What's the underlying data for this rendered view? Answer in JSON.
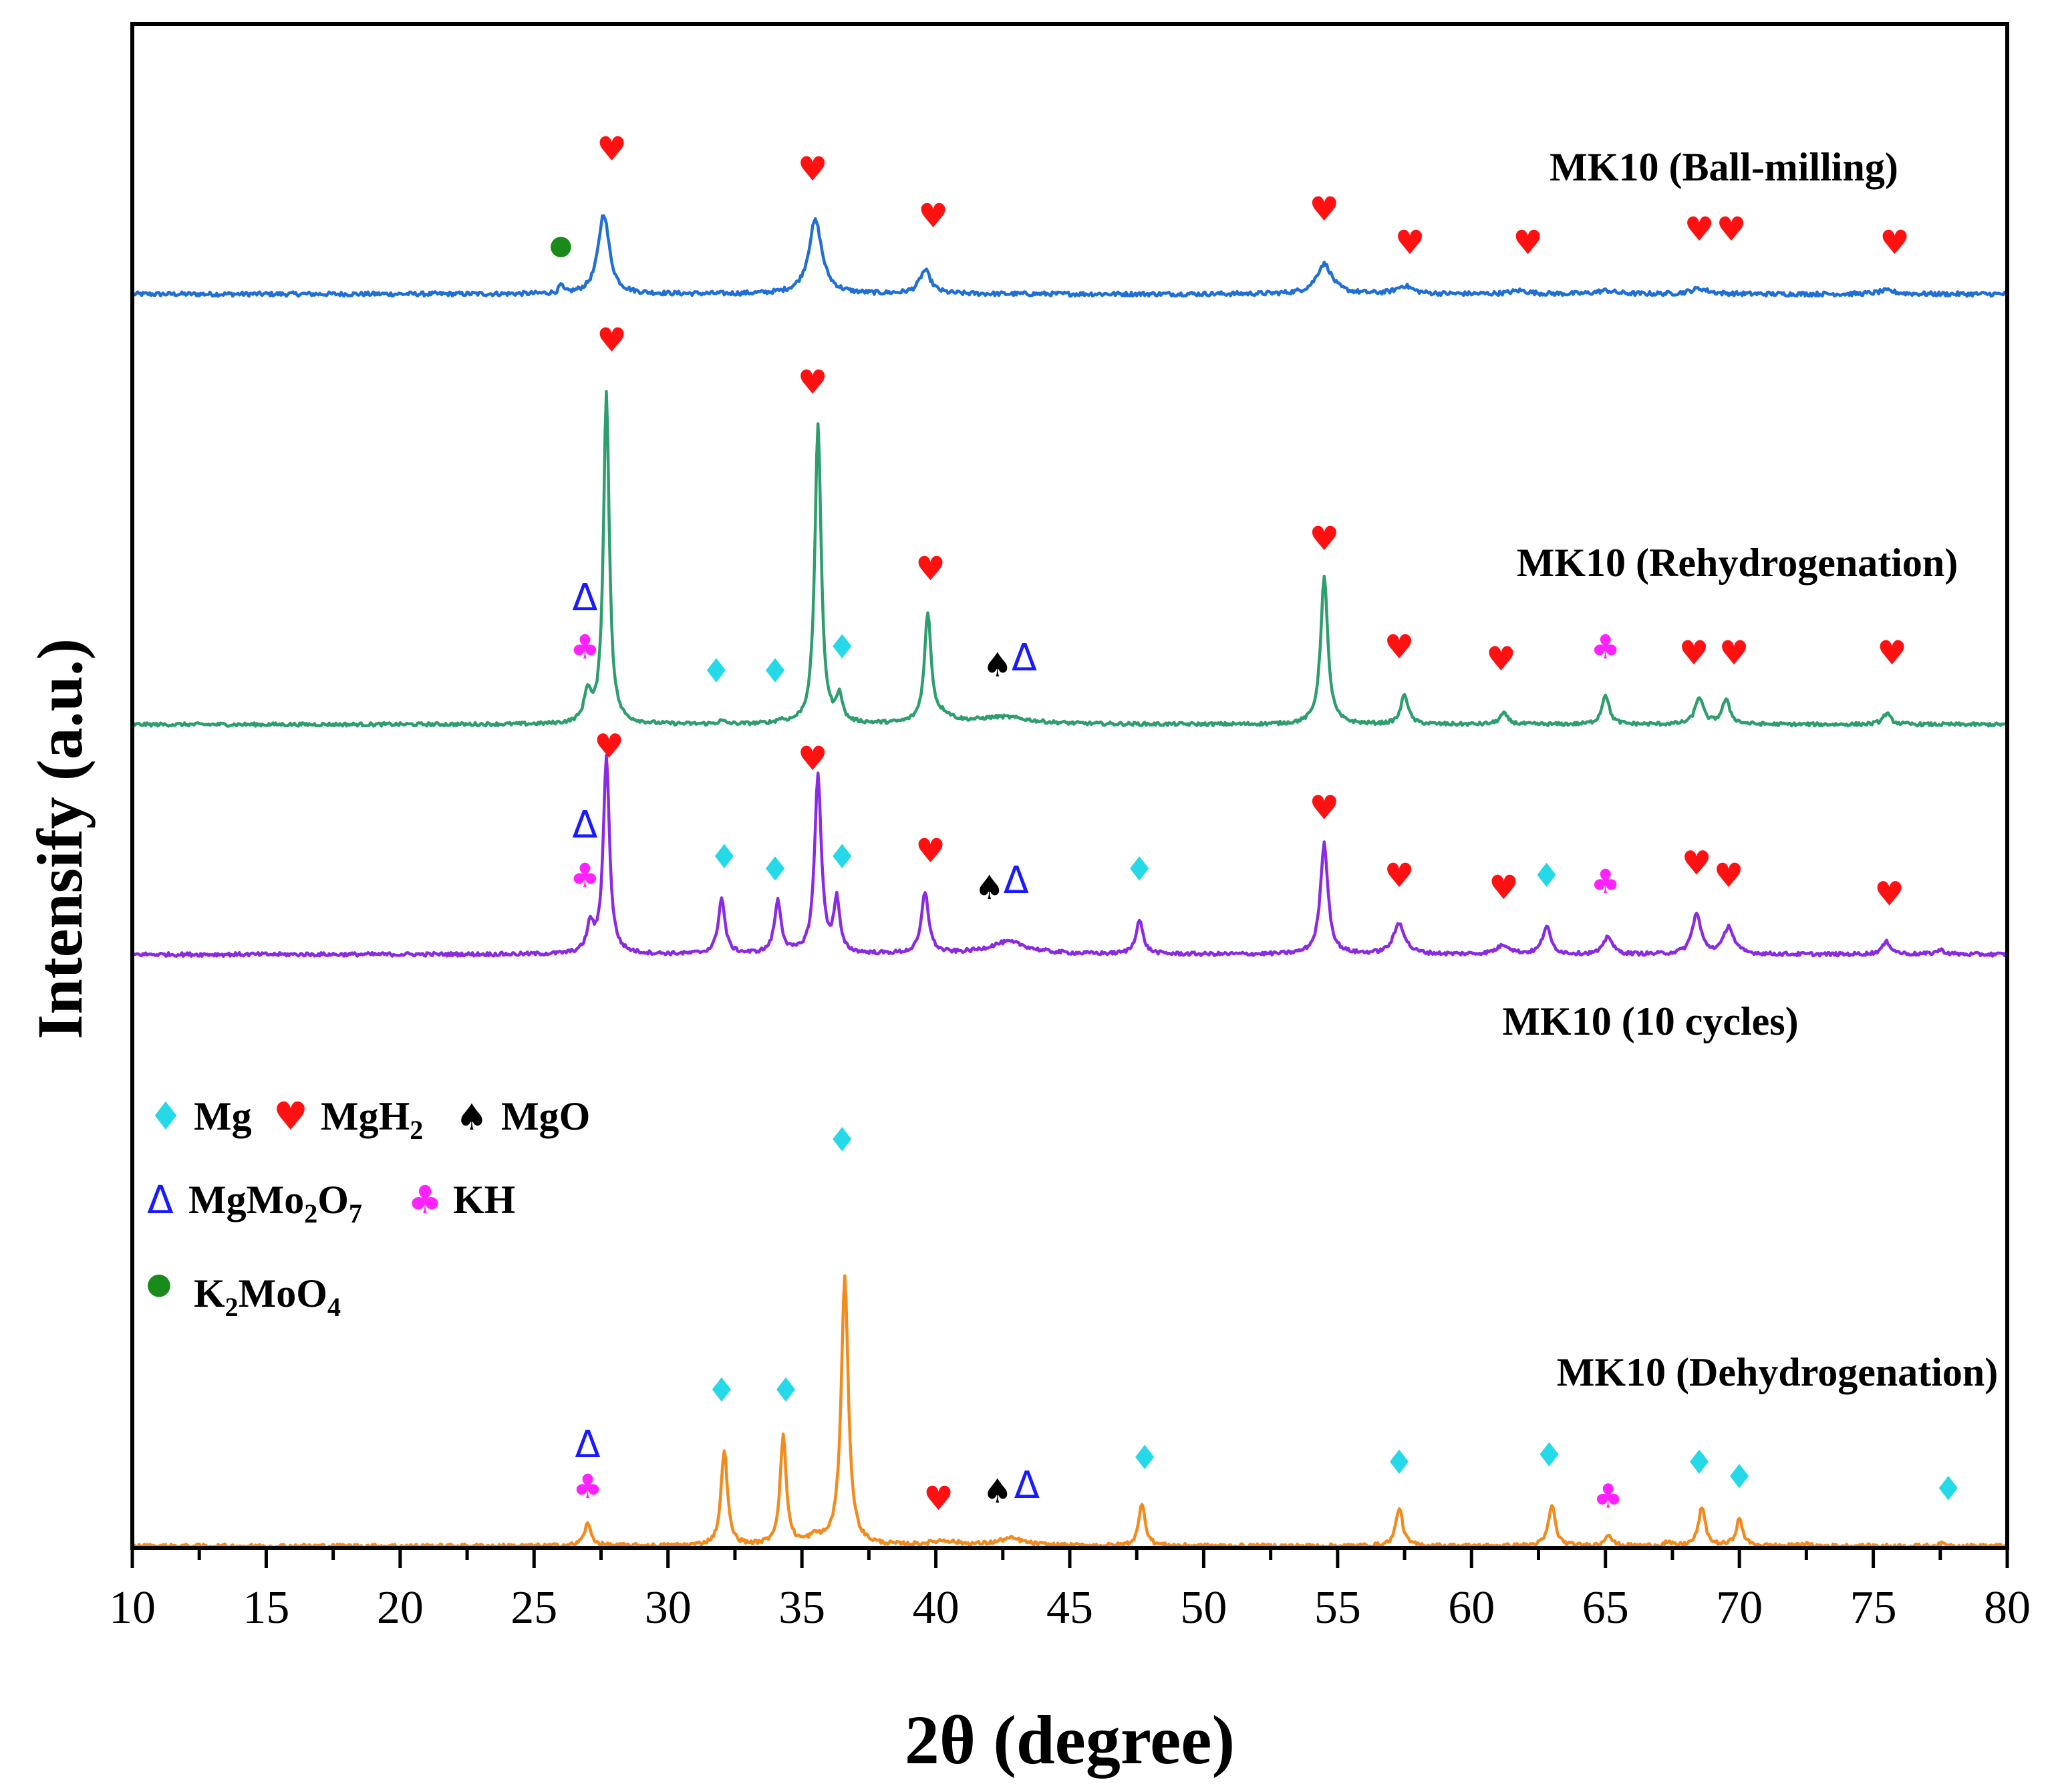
{
  "chart_data": {
    "type": "line",
    "title": "",
    "xlabel": "2θ (degree)",
    "ylabel": "Intensify (a.u.)",
    "xlim": [
      10,
      80
    ],
    "x_ticks": [
      10,
      15,
      20,
      25,
      30,
      35,
      40,
      45,
      50,
      55,
      60,
      65,
      70,
      75,
      80
    ],
    "y_ticks": [],
    "grid": false,
    "legend_position": "bottom-left",
    "colors": {
      "ball": "#1f6fd6",
      "rehyd": "#2e9e6e",
      "cycles": "#8a2be2",
      "dehyd": "#f28a1c",
      "Mg": "#26d9e8",
      "MgH2": "#ff1111",
      "MgO": "#000000",
      "MgMo2O7": "#1a1aff",
      "KH": "#ff22ff",
      "K2MoO4": "#1a8a1a"
    },
    "legend": [
      {
        "phase": "Mg",
        "symbol": "♦",
        "label": "Mg"
      },
      {
        "phase": "MgH2",
        "symbol": "♥",
        "label": "MgH",
        "sub": "2"
      },
      {
        "phase": "MgO",
        "symbol": "♠",
        "label": "MgO"
      },
      {
        "phase": "MgMo2O7",
        "symbol": "Δ",
        "label": "MgMo",
        "sub1": "2",
        "mid": "O",
        "sub2": "7"
      },
      {
        "phase": "KH",
        "symbol": "♣",
        "label": "KH"
      },
      {
        "phase": "K2MoO4",
        "symbol": "●",
        "label": "K",
        "sub1": "2",
        "mid": "MoO",
        "sub2": "4"
      }
    ],
    "series": [
      {
        "name": "MK10 (Ball-milling)",
        "key": "ball",
        "baseline": 0.1,
        "scale": 0.055,
        "peaks": [
          {
            "x": 26.0,
            "h": 0.12,
            "w": 0.08
          },
          {
            "x": 27.6,
            "h": 1.2,
            "w": 0.25
          },
          {
            "x": 35.5,
            "h": 1.1,
            "w": 0.3
          },
          {
            "x": 39.6,
            "h": 0.35,
            "w": 0.25
          },
          {
            "x": 54.5,
            "h": 0.45,
            "w": 0.35
          },
          {
            "x": 57.5,
            "h": 0.12,
            "w": 0.35
          },
          {
            "x": 61.8,
            "h": 0.05,
            "w": 0.4
          },
          {
            "x": 65.0,
            "h": 0.05,
            "w": 0.4
          },
          {
            "x": 68.5,
            "h": 0.08,
            "w": 0.4
          },
          {
            "x": 75.5,
            "h": 0.05,
            "w": 0.4
          }
        ],
        "markers": [
          {
            "x": 26.0,
            "phase": "K2MoO4",
            "symbol": "●",
            "y": 0.6
          },
          {
            "x": 27.9,
            "phase": "MgH2",
            "symbol": "♥",
            "y": 2.0
          },
          {
            "x": 35.4,
            "phase": "MgH2",
            "symbol": "♥",
            "y": 1.7
          },
          {
            "x": 39.9,
            "phase": "MgH2",
            "symbol": "♥",
            "y": 1.0
          },
          {
            "x": 54.5,
            "phase": "MgH2",
            "symbol": "♥",
            "y": 1.1
          },
          {
            "x": 57.7,
            "phase": "MgH2",
            "symbol": "♥",
            "y": 0.6
          },
          {
            "x": 62.1,
            "phase": "MgH2",
            "symbol": "♥",
            "y": 0.6
          },
          {
            "x": 68.5,
            "phase": "MgH2",
            "symbol": "♥",
            "y": 0.8
          },
          {
            "x": 69.7,
            "phase": "MgH2",
            "symbol": "♥",
            "y": 0.8
          },
          {
            "x": 75.8,
            "phase": "MgH2",
            "symbol": "♥",
            "y": 0.6
          }
        ]
      },
      {
        "name": "MK10 (Rehydrogenation)",
        "key": "rehyd",
        "baseline": 0.1,
        "scale": 0.048,
        "peaks": [
          {
            "x": 27.0,
            "h": 0.5,
            "w": 0.15
          },
          {
            "x": 27.7,
            "h": 5.5,
            "w": 0.13
          },
          {
            "x": 32.0,
            "h": 0.05,
            "w": 0.15
          },
          {
            "x": 34.2,
            "h": 0.05,
            "w": 0.15
          },
          {
            "x": 35.6,
            "h": 5.0,
            "w": 0.14
          },
          {
            "x": 36.4,
            "h": 0.45,
            "w": 0.12
          },
          {
            "x": 39.7,
            "h": 1.8,
            "w": 0.15
          },
          {
            "x": 40.3,
            "h": 0.12,
            "w": 0.4
          },
          {
            "x": 42.5,
            "h": 0.12,
            "w": 1.2
          },
          {
            "x": 54.5,
            "h": 2.45,
            "w": 0.16
          },
          {
            "x": 57.5,
            "h": 0.5,
            "w": 0.16
          },
          {
            "x": 61.2,
            "h": 0.18,
            "w": 0.18
          },
          {
            "x": 65.0,
            "h": 0.5,
            "w": 0.16
          },
          {
            "x": 68.5,
            "h": 0.45,
            "w": 0.18
          },
          {
            "x": 69.5,
            "h": 0.4,
            "w": 0.18
          },
          {
            "x": 75.5,
            "h": 0.18,
            "w": 0.18
          }
        ],
        "markers": [
          {
            "x": 26.9,
            "phase": "KH",
            "symbol": "♣",
            "y": 1.1
          },
          {
            "x": 26.9,
            "phase": "MgMo2O7",
            "symbol": "Δ",
            "y": 1.9
          },
          {
            "x": 27.9,
            "phase": "MgH2",
            "symbol": "♥",
            "y": 6.2
          },
          {
            "x": 31.8,
            "phase": "Mg",
            "symbol": "♦",
            "y": 0.7
          },
          {
            "x": 34.0,
            "phase": "Mg",
            "symbol": "♦",
            "y": 0.7
          },
          {
            "x": 36.5,
            "phase": "Mg",
            "symbol": "♦",
            "y": 1.1
          },
          {
            "x": 35.4,
            "phase": "MgH2",
            "symbol": "♥",
            "y": 5.5
          },
          {
            "x": 39.8,
            "phase": "MgH2",
            "symbol": "♥",
            "y": 2.4
          },
          {
            "x": 42.3,
            "phase": "MgO",
            "symbol": "♠",
            "y": 0.8
          },
          {
            "x": 43.3,
            "phase": "MgMo2O7",
            "symbol": "Δ",
            "y": 0.9
          },
          {
            "x": 54.5,
            "phase": "MgH2",
            "symbol": "♥",
            "y": 2.9
          },
          {
            "x": 57.3,
            "phase": "MgH2",
            "symbol": "♥",
            "y": 1.1
          },
          {
            "x": 61.1,
            "phase": "MgH2",
            "symbol": "♥",
            "y": 0.9
          },
          {
            "x": 65.0,
            "phase": "KH",
            "symbol": "♣",
            "y": 1.1
          },
          {
            "x": 68.3,
            "phase": "MgH2",
            "symbol": "♥",
            "y": 1.0
          },
          {
            "x": 69.8,
            "phase": "MgH2",
            "symbol": "♥",
            "y": 1.0
          },
          {
            "x": 75.7,
            "phase": "MgH2",
            "symbol": "♥",
            "y": 1.0
          }
        ]
      },
      {
        "name": "MK10 (10 cycles)",
        "key": "cycles",
        "baseline": 0.1,
        "scale": 0.05,
        "peaks": [
          {
            "x": 27.1,
            "h": 0.45,
            "w": 0.15
          },
          {
            "x": 27.7,
            "h": 3.2,
            "w": 0.14
          },
          {
            "x": 32.0,
            "h": 0.9,
            "w": 0.15
          },
          {
            "x": 34.1,
            "h": 0.85,
            "w": 0.15
          },
          {
            "x": 35.6,
            "h": 2.9,
            "w": 0.15
          },
          {
            "x": 36.3,
            "h": 0.85,
            "w": 0.13
          },
          {
            "x": 39.6,
            "h": 1.0,
            "w": 0.16
          },
          {
            "x": 42.7,
            "h": 0.2,
            "w": 0.9
          },
          {
            "x": 47.6,
            "h": 0.55,
            "w": 0.16
          },
          {
            "x": 54.5,
            "h": 1.8,
            "w": 0.17
          },
          {
            "x": 57.3,
            "h": 0.5,
            "w": 0.25
          },
          {
            "x": 61.2,
            "h": 0.15,
            "w": 0.3
          },
          {
            "x": 62.8,
            "h": 0.45,
            "w": 0.18
          },
          {
            "x": 65.1,
            "h": 0.3,
            "w": 0.18
          },
          {
            "x": 68.4,
            "h": 0.65,
            "w": 0.2
          },
          {
            "x": 69.6,
            "h": 0.45,
            "w": 0.22
          },
          {
            "x": 75.5,
            "h": 0.2,
            "w": 0.2
          },
          {
            "x": 77.5,
            "h": 0.07,
            "w": 0.2
          }
        ],
        "markers": [
          {
            "x": 26.9,
            "phase": "KH",
            "symbol": "♣",
            "y": 1.1
          },
          {
            "x": 26.9,
            "phase": "MgMo2O7",
            "symbol": "Δ",
            "y": 1.9
          },
          {
            "x": 27.8,
            "phase": "MgH2",
            "symbol": "♥",
            "y": 3.2
          },
          {
            "x": 32.1,
            "phase": "Mg",
            "symbol": "♦",
            "y": 1.4
          },
          {
            "x": 34.0,
            "phase": "Mg",
            "symbol": "♦",
            "y": 1.2
          },
          {
            "x": 36.5,
            "phase": "Mg",
            "symbol": "♦",
            "y": 1.4
          },
          {
            "x": 35.4,
            "phase": "MgH2",
            "symbol": "♥",
            "y": 3.0
          },
          {
            "x": 39.8,
            "phase": "MgH2",
            "symbol": "♥",
            "y": 1.5
          },
          {
            "x": 42.0,
            "phase": "MgO",
            "symbol": "♠",
            "y": 0.9
          },
          {
            "x": 43.0,
            "phase": "MgMo2O7",
            "symbol": "Δ",
            "y": 1.0
          },
          {
            "x": 47.6,
            "phase": "Mg",
            "symbol": "♦",
            "y": 1.2
          },
          {
            "x": 54.5,
            "phase": "MgH2",
            "symbol": "♥",
            "y": 2.2
          },
          {
            "x": 57.3,
            "phase": "MgH2",
            "symbol": "♥",
            "y": 1.1
          },
          {
            "x": 61.2,
            "phase": "MgH2",
            "symbol": "♥",
            "y": 0.9
          },
          {
            "x": 62.8,
            "phase": "Mg",
            "symbol": "♦",
            "y": 1.1
          },
          {
            "x": 65.0,
            "phase": "KH",
            "symbol": "♣",
            "y": 1.0
          },
          {
            "x": 68.4,
            "phase": "MgH2",
            "symbol": "♥",
            "y": 1.3
          },
          {
            "x": 69.6,
            "phase": "MgH2",
            "symbol": "♥",
            "y": 1.1
          },
          {
            "x": 75.6,
            "phase": "MgH2",
            "symbol": "♥",
            "y": 0.8
          }
        ]
      },
      {
        "name": "MK10 (Dehydrogenation)",
        "key": "dehyd",
        "baseline": 0.1,
        "scale": 0.07,
        "peaks": [
          {
            "x": 27.0,
            "h": 0.45,
            "w": 0.16
          },
          {
            "x": 32.1,
            "h": 2.0,
            "w": 0.14
          },
          {
            "x": 34.3,
            "h": 2.25,
            "w": 0.14
          },
          {
            "x": 35.5,
            "h": 0.15,
            "w": 0.3
          },
          {
            "x": 36.6,
            "h": 5.55,
            "w": 0.16
          },
          {
            "x": 40.3,
            "h": 0.1,
            "w": 0.6
          },
          {
            "x": 42.8,
            "h": 0.15,
            "w": 0.6
          },
          {
            "x": 47.7,
            "h": 0.9,
            "w": 0.14
          },
          {
            "x": 57.3,
            "h": 0.8,
            "w": 0.15
          },
          {
            "x": 63.0,
            "h": 0.85,
            "w": 0.15
          },
          {
            "x": 65.1,
            "h": 0.25,
            "w": 0.15
          },
          {
            "x": 67.3,
            "h": 0.07,
            "w": 0.15
          },
          {
            "x": 68.6,
            "h": 0.8,
            "w": 0.15
          },
          {
            "x": 70.0,
            "h": 0.55,
            "w": 0.15
          },
          {
            "x": 72.4,
            "h": 0.05,
            "w": 0.15
          },
          {
            "x": 77.6,
            "h": 0.05,
            "w": 0.15
          }
        ],
        "markers": [
          {
            "x": 27.0,
            "phase": "KH",
            "symbol": "♣",
            "y": 1.0
          },
          {
            "x": 27.0,
            "phase": "MgMo2O7",
            "symbol": "Δ",
            "y": 1.85
          },
          {
            "x": 32.0,
            "phase": "Mg",
            "symbol": "♦",
            "y": 3.0
          },
          {
            "x": 34.4,
            "phase": "Mg",
            "symbol": "♦",
            "y": 3.0
          },
          {
            "x": 36.5,
            "phase": "Mg",
            "symbol": "♦",
            "y": 8.2
          },
          {
            "x": 40.1,
            "phase": "MgH2",
            "symbol": "♥",
            "y": 0.75
          },
          {
            "x": 42.3,
            "phase": "MgO",
            "symbol": "♠",
            "y": 0.9
          },
          {
            "x": 43.4,
            "phase": "MgMo2O7",
            "symbol": "Δ",
            "y": 1.0
          },
          {
            "x": 47.8,
            "phase": "Mg",
            "symbol": "♦",
            "y": 1.6
          },
          {
            "x": 57.3,
            "phase": "Mg",
            "symbol": "♦",
            "y": 1.5
          },
          {
            "x": 62.9,
            "phase": "Mg",
            "symbol": "♦",
            "y": 1.65
          },
          {
            "x": 65.1,
            "phase": "KH",
            "symbol": "♣",
            "y": 0.8
          },
          {
            "x": 68.5,
            "phase": "Mg",
            "symbol": "♦",
            "y": 1.5
          },
          {
            "x": 70.0,
            "phase": "Mg",
            "symbol": "♦",
            "y": 1.2
          },
          {
            "x": 77.8,
            "phase": "Mg",
            "symbol": "♦",
            "y": 0.95
          }
        ]
      }
    ]
  }
}
